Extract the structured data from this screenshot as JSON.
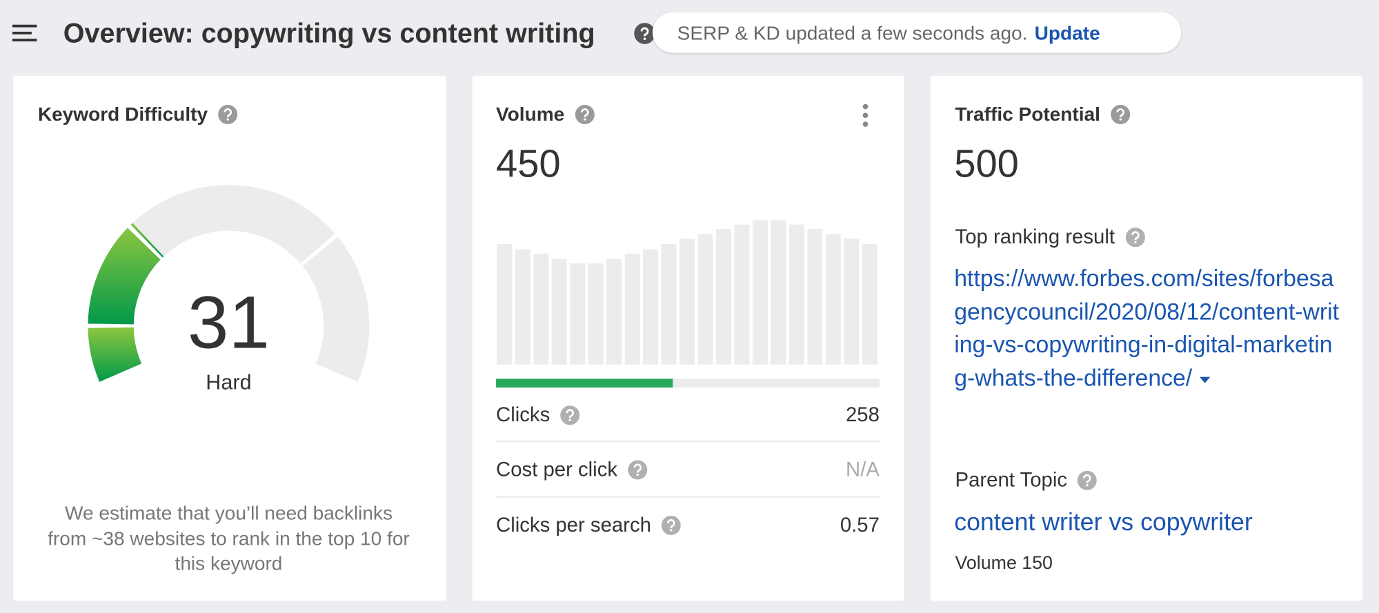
{
  "header": {
    "title": "Overview: copywriting vs content writing",
    "notice": "SERP & KD updated a few seconds ago.",
    "update_link": "Update"
  },
  "cards": {
    "keyword_difficulty": {
      "title": "Keyword Difficulty",
      "value": 31,
      "gauge_range": [
        0,
        100
      ],
      "label": "Hard",
      "note": "We estimate that you’ll need backlinks from ~38 websites to rank in the top 10 for this keyword"
    },
    "volume": {
      "title": "Volume",
      "value": 450,
      "trend": [
        137,
        131,
        126,
        120,
        115,
        115,
        120,
        126,
        131,
        137,
        143,
        148,
        154,
        159,
        164,
        164,
        159,
        154,
        148,
        143,
        137
      ],
      "trend_ylim": [
        0,
        165
      ],
      "rows": [
        {
          "label": "Clicks",
          "value": "258"
        },
        {
          "label": "Cost per click",
          "value": "N/A"
        },
        {
          "label": "Clicks per search",
          "value": "0.57"
        }
      ]
    },
    "traffic_potential": {
      "title": "Traffic Potential",
      "value": 500,
      "top_ranking_label": "Top ranking result",
      "top_ranking_url": "https://www.forbes.com/sites/forbesagencycouncil/2020/08/12/content-writing-vs-copywriting-in-digital-marketing-whats-the-difference/",
      "parent_topic_label": "Parent Topic",
      "parent_topic": "content writer vs copywriter",
      "parent_volume": "Volume 150"
    }
  }
}
